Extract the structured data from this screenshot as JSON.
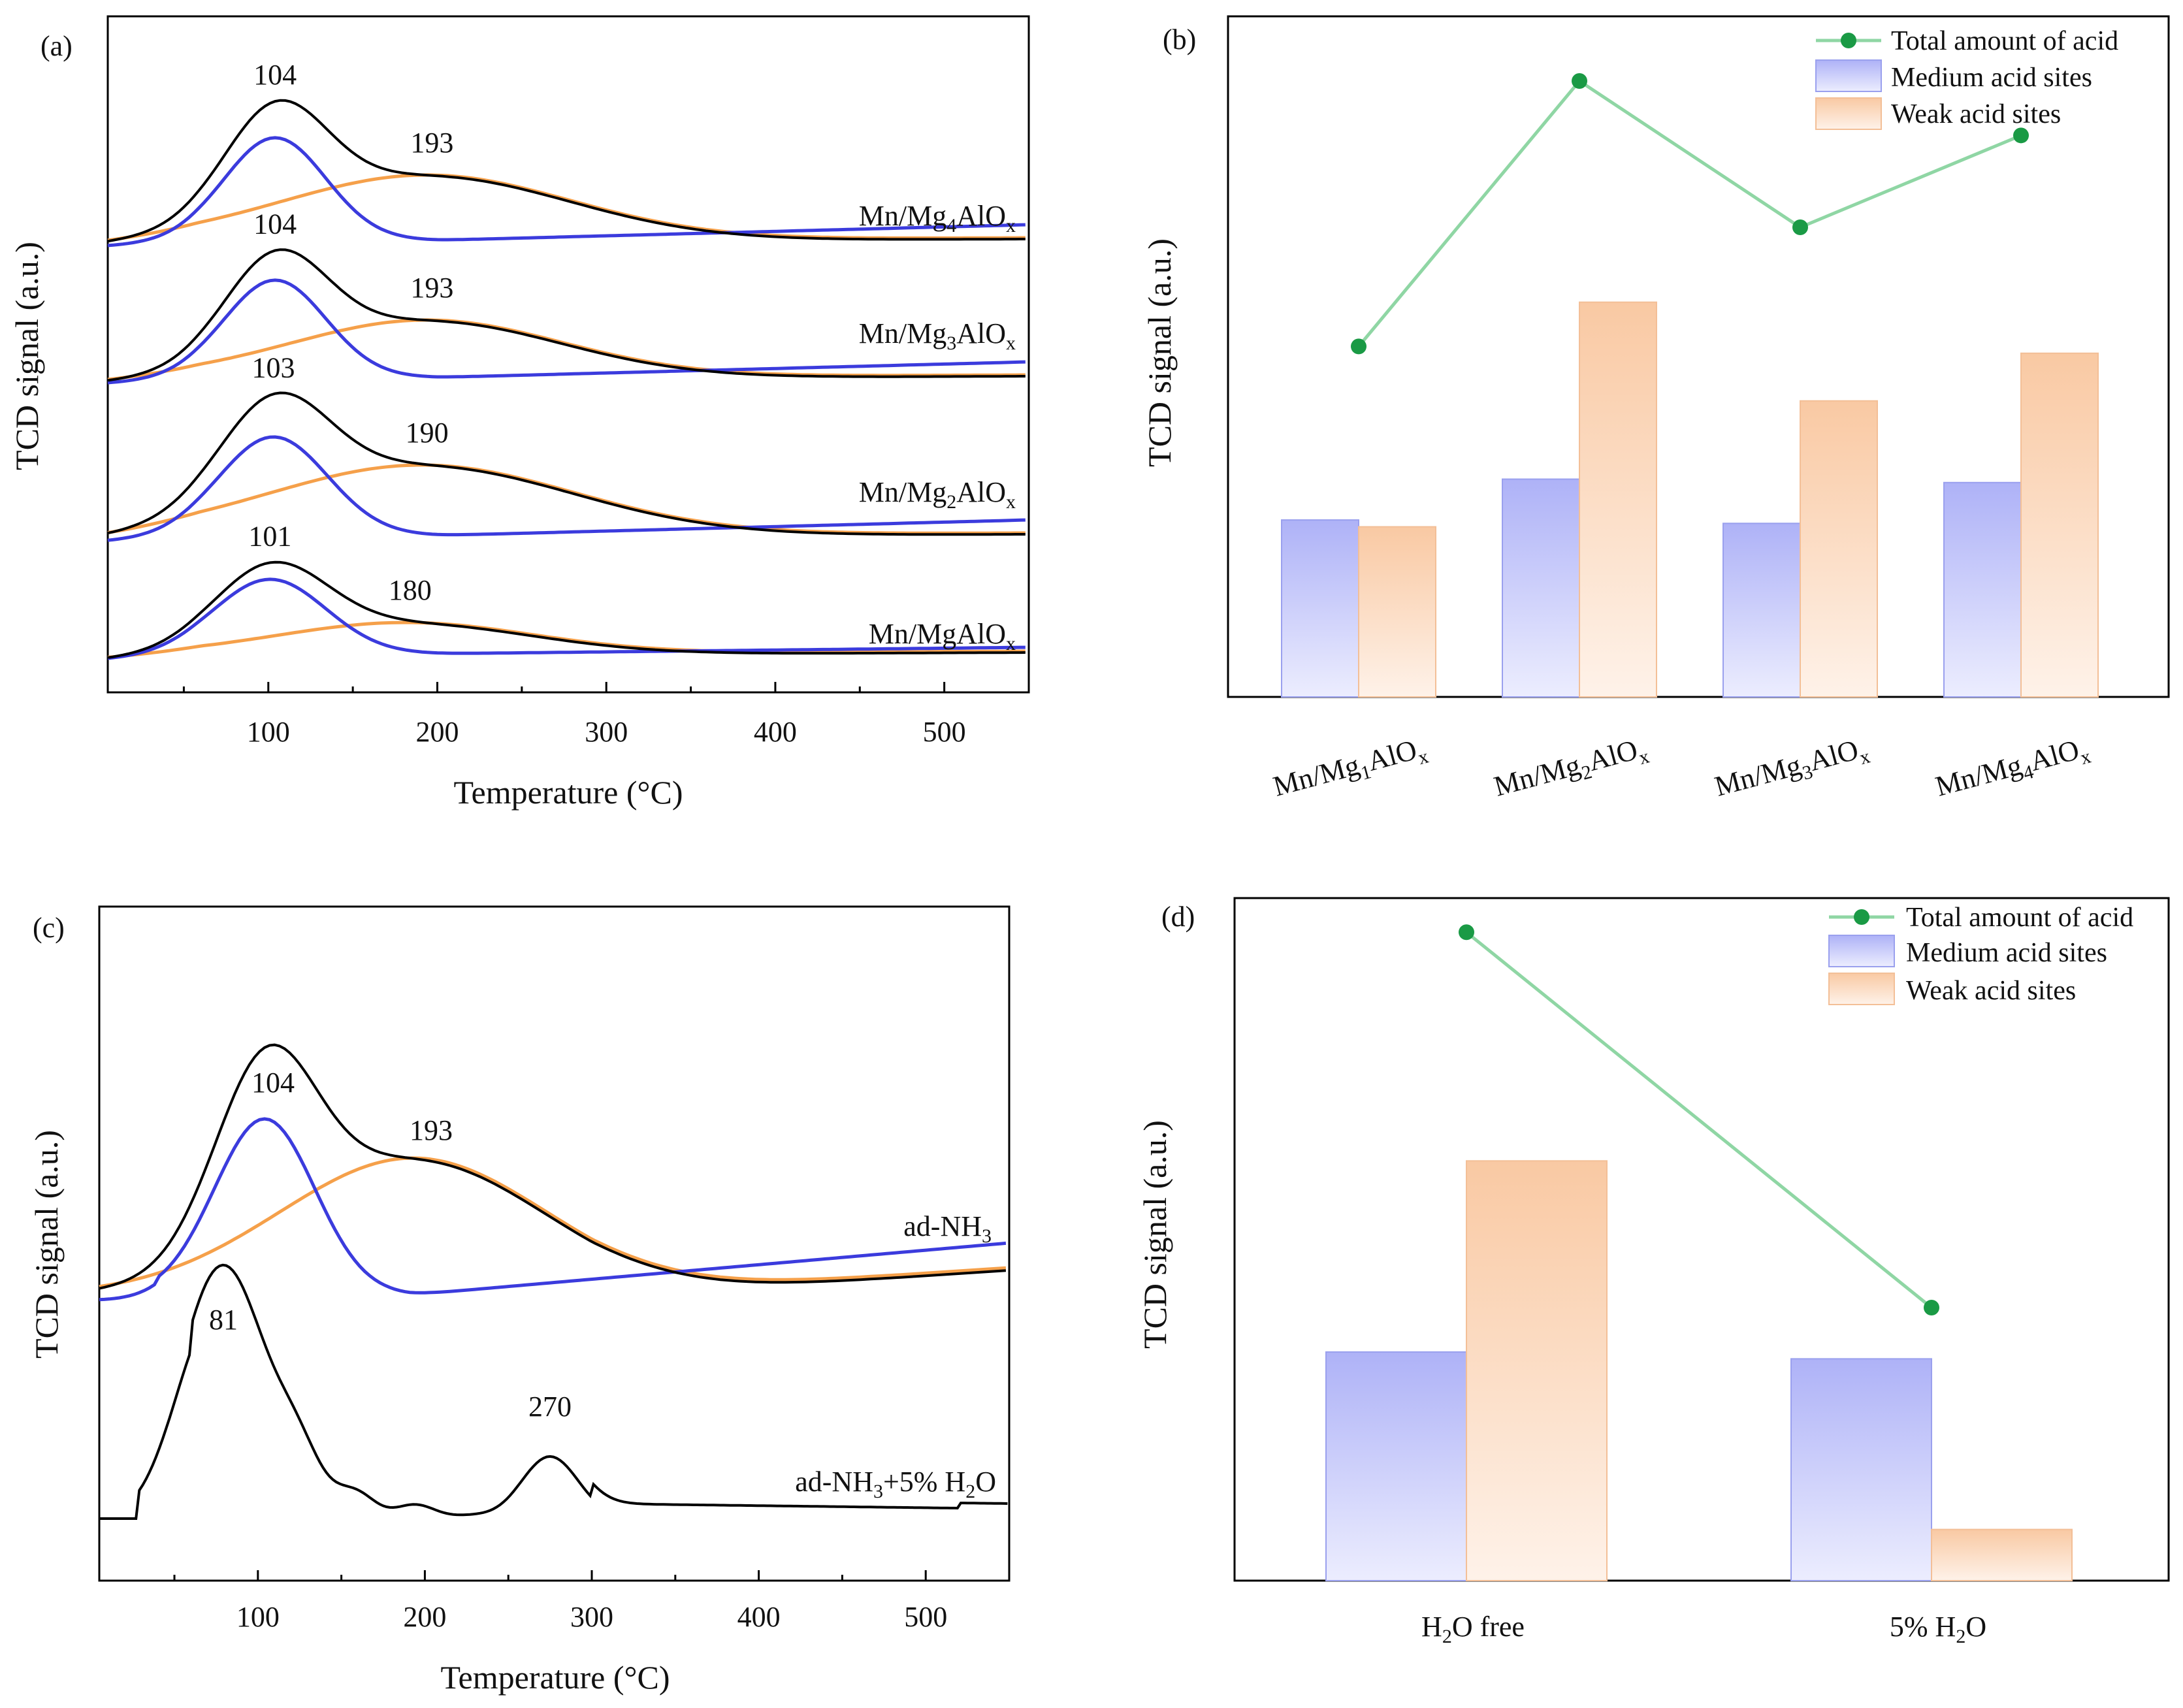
{
  "colors": {
    "total": "#3cbf6a",
    "total_light": "#8fd6a4",
    "total_marker": "#1a9a45",
    "medium_top": "#aeb2f7",
    "medium_bottom": "#e9eafd",
    "medium_edge": "#9aa0ee",
    "weak_top": "#f9c9a3",
    "weak_bottom": "#fdf0e6",
    "weak_edge": "#f3bf97",
    "black_curve": "#000000",
    "blue_curve": "#3b3bdd",
    "orange_curve": "#f5a04a",
    "orange_edge": "#7a3a0a"
  },
  "panels": {
    "a": {
      "label": "(a)",
      "xlabel": "Temperature (°C)",
      "ylabel": "TCD signal (a.u.)",
      "xticks": [
        "100",
        "200",
        "300",
        "400",
        "500"
      ]
    },
    "b": {
      "label": "(b)",
      "ylabel": "TCD signal (a.u.)"
    },
    "c": {
      "label": "(c)",
      "xlabel": "Temperature (°C)",
      "ylabel": "TCD signal (a.u.)",
      "xticks": [
        "100",
        "200",
        "300",
        "400",
        "500"
      ],
      "peak_labels": [
        "104",
        "193",
        "81",
        "270"
      ],
      "curve_labels": {
        "ad": {
          "base": "ad-NH",
          "sub": "3"
        },
        "h2o": {
          "base": "ad-NH",
          "sub": "3",
          "tail": "+5% H",
          "sub2": "2",
          "tail2": "O"
        }
      }
    },
    "d": {
      "label": "(d)",
      "ylabel": "TCD signal (a.u.)"
    }
  },
  "legend": {
    "total": "Total amount of acid",
    "medium": "Medium acid sites",
    "weak": "Weak acid sites"
  },
  "chart_data": [
    {
      "panel": "a",
      "type": "line",
      "title": "",
      "xlabel": "Temperature (°C)",
      "ylabel": "TCD signal (a.u.)",
      "xlim": [
        5,
        550
      ],
      "grid": false,
      "samples": [
        {
          "name_parts": {
            "base": "Mn/Mg",
            "sub": "4",
            "mid": "AlO",
            "sub2": "x"
          },
          "medium_peak": {
            "center": 104,
            "label": "104"
          },
          "weak_peak": {
            "center": 193,
            "label": "193"
          }
        },
        {
          "name_parts": {
            "base": "Mn/Mg",
            "sub": "3",
            "mid": "AlO",
            "sub2": "x"
          },
          "medium_peak": {
            "center": 104,
            "label": "104"
          },
          "weak_peak": {
            "center": 193,
            "label": "193"
          }
        },
        {
          "name_parts": {
            "base": "Mn/Mg",
            "sub": "2",
            "mid": "AlO",
            "sub2": "x"
          },
          "medium_peak": {
            "center": 103,
            "label": "103"
          },
          "weak_peak": {
            "center": 190,
            "label": "190"
          }
        },
        {
          "name_parts": {
            "base": "Mn/MgAlO",
            "sub": "x"
          },
          "medium_peak": {
            "center": 101,
            "label": "101"
          },
          "weak_peak": {
            "center": 180,
            "label": "180"
          }
        }
      ]
    },
    {
      "panel": "b",
      "type": "bar",
      "title": "",
      "ylabel": "TCD signal (a.u.)",
      "ylim": [
        0,
        100
      ],
      "grid": false,
      "legend_position": "top-right",
      "categories": [
        {
          "base": "Mn/Mg",
          "sub": "1",
          "mid": "AlO",
          "sub2": "x"
        },
        {
          "base": "Mn/Mg",
          "sub": "2",
          "mid": "AlO",
          "sub2": "x"
        },
        {
          "base": "Mn/Mg",
          "sub": "3",
          "mid": "AlO",
          "sub2": "x"
        },
        {
          "base": "Mn/Mg",
          "sub": "4",
          "mid": "AlO",
          "sub2": "x"
        }
      ],
      "series": [
        {
          "name": "Medium acid sites",
          "values": [
            26,
            32,
            25.5,
            31.5
          ]
        },
        {
          "name": "Weak acid sites",
          "values": [
            25,
            58,
            43.5,
            50.5
          ]
        },
        {
          "name": "Total amount of acid",
          "values": [
            51.5,
            90.5,
            69,
            82.5
          ]
        }
      ]
    },
    {
      "panel": "c",
      "type": "line",
      "title": "",
      "xlabel": "Temperature (°C)",
      "ylabel": "TCD signal (a.u.)",
      "xlim": [
        5,
        550
      ],
      "grid": false,
      "series": [
        {
          "name": "ad-NH3",
          "medium_peak": 104,
          "weak_peak": 193
        },
        {
          "name": "ad-NH3+5% H2O",
          "peaks": [
            81,
            270
          ]
        }
      ]
    },
    {
      "panel": "d",
      "type": "bar",
      "title": "",
      "ylabel": "TCD signal (a.u.)",
      "ylim": [
        0,
        100
      ],
      "grid": false,
      "legend_position": "top-right",
      "categories": [
        {
          "base": "H",
          "sub": "2",
          "mid": "O free"
        },
        {
          "base": "5% H",
          "sub": "2",
          "mid": "O"
        }
      ],
      "series": [
        {
          "name": "Medium acid sites",
          "values": [
            33.5,
            32.5
          ]
        },
        {
          "name": "Weak acid sites",
          "values": [
            61.5,
            7.5
          ]
        },
        {
          "name": "Total amount of acid",
          "values": [
            95,
            40
          ]
        }
      ]
    }
  ]
}
